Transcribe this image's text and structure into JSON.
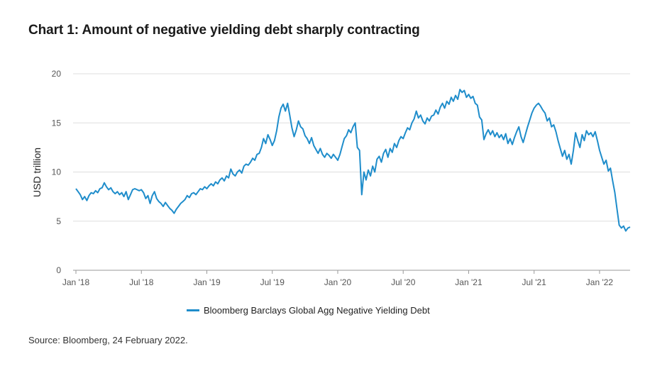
{
  "title": "Chart 1: Amount of negative yielding debt sharply contracting",
  "source": "Source: Bloomberg, 24 February 2022.",
  "colors": {
    "series": "#1f8dcb",
    "grid": "#dddddd",
    "axis": "#999999"
  },
  "chart_data": {
    "type": "line",
    "ylabel": "USD trillion",
    "ylim": [
      0,
      20
    ],
    "yticks": [
      0,
      5,
      10,
      15,
      20
    ],
    "xlim": [
      0,
      50.8
    ],
    "xticks": [
      {
        "x": 0,
        "label": "Jan '18"
      },
      {
        "x": 6,
        "label": "Jul '18"
      },
      {
        "x": 12,
        "label": "Jan '19"
      },
      {
        "x": 18,
        "label": "Jul '19"
      },
      {
        "x": 24,
        "label": "Jan '20"
      },
      {
        "x": 30,
        "label": "Jul '20"
      },
      {
        "x": 36,
        "label": "Jan '21"
      },
      {
        "x": 42,
        "label": "Jul '21"
      },
      {
        "x": 48,
        "label": "Jan '22"
      }
    ],
    "legend": {
      "placement": "bottom"
    },
    "grid": true,
    "series": [
      {
        "name": "Bloomberg Barclays Global Agg Negative Yielding Debt",
        "points": [
          [
            0.0,
            8.3
          ],
          [
            0.2,
            8.0
          ],
          [
            0.4,
            7.7
          ],
          [
            0.6,
            7.2
          ],
          [
            0.8,
            7.5
          ],
          [
            1.0,
            7.1
          ],
          [
            1.2,
            7.6
          ],
          [
            1.4,
            7.9
          ],
          [
            1.6,
            7.8
          ],
          [
            1.8,
            8.1
          ],
          [
            2.0,
            7.9
          ],
          [
            2.2,
            8.3
          ],
          [
            2.4,
            8.4
          ],
          [
            2.6,
            8.9
          ],
          [
            2.8,
            8.5
          ],
          [
            3.0,
            8.2
          ],
          [
            3.2,
            8.4
          ],
          [
            3.4,
            8.0
          ],
          [
            3.6,
            7.8
          ],
          [
            3.8,
            8.0
          ],
          [
            4.0,
            7.7
          ],
          [
            4.2,
            7.9
          ],
          [
            4.4,
            7.5
          ],
          [
            4.6,
            8.0
          ],
          [
            4.8,
            7.2
          ],
          [
            5.0,
            7.7
          ],
          [
            5.2,
            8.2
          ],
          [
            5.4,
            8.3
          ],
          [
            5.6,
            8.2
          ],
          [
            5.8,
            8.1
          ],
          [
            6.0,
            8.2
          ],
          [
            6.2,
            7.9
          ],
          [
            6.4,
            7.3
          ],
          [
            6.6,
            7.6
          ],
          [
            6.8,
            6.8
          ],
          [
            7.0,
            7.6
          ],
          [
            7.2,
            8.0
          ],
          [
            7.4,
            7.3
          ],
          [
            7.6,
            7.0
          ],
          [
            7.8,
            6.8
          ],
          [
            8.0,
            6.5
          ],
          [
            8.2,
            6.9
          ],
          [
            8.4,
            6.6
          ],
          [
            8.6,
            6.3
          ],
          [
            8.8,
            6.1
          ],
          [
            9.0,
            5.8
          ],
          [
            9.2,
            6.2
          ],
          [
            9.4,
            6.5
          ],
          [
            9.6,
            6.8
          ],
          [
            9.8,
            7.0
          ],
          [
            10.0,
            7.2
          ],
          [
            10.2,
            7.6
          ],
          [
            10.4,
            7.4
          ],
          [
            10.6,
            7.8
          ],
          [
            10.8,
            7.9
          ],
          [
            11.0,
            7.7
          ],
          [
            11.2,
            8.0
          ],
          [
            11.4,
            8.3
          ],
          [
            11.6,
            8.2
          ],
          [
            11.8,
            8.5
          ],
          [
            12.0,
            8.3
          ],
          [
            12.2,
            8.6
          ],
          [
            12.4,
            8.8
          ],
          [
            12.6,
            8.6
          ],
          [
            12.8,
            9.0
          ],
          [
            13.0,
            8.8
          ],
          [
            13.2,
            9.2
          ],
          [
            13.4,
            9.4
          ],
          [
            13.6,
            9.1
          ],
          [
            13.8,
            9.6
          ],
          [
            14.0,
            9.4
          ],
          [
            14.2,
            10.3
          ],
          [
            14.4,
            9.8
          ],
          [
            14.6,
            9.6
          ],
          [
            14.8,
            10.0
          ],
          [
            15.0,
            10.2
          ],
          [
            15.2,
            9.9
          ],
          [
            15.4,
            10.6
          ],
          [
            15.6,
            10.8
          ],
          [
            15.8,
            10.7
          ],
          [
            16.0,
            11.0
          ],
          [
            16.2,
            11.4
          ],
          [
            16.4,
            11.2
          ],
          [
            16.6,
            11.8
          ],
          [
            16.8,
            11.9
          ],
          [
            17.0,
            12.5
          ],
          [
            17.2,
            13.4
          ],
          [
            17.4,
            12.9
          ],
          [
            17.6,
            13.8
          ],
          [
            17.8,
            13.3
          ],
          [
            18.0,
            12.7
          ],
          [
            18.2,
            13.2
          ],
          [
            18.4,
            14.2
          ],
          [
            18.6,
            15.6
          ],
          [
            18.8,
            16.5
          ],
          [
            19.0,
            16.9
          ],
          [
            19.2,
            16.2
          ],
          [
            19.4,
            17.0
          ],
          [
            19.6,
            15.8
          ],
          [
            19.8,
            14.5
          ],
          [
            20.0,
            13.6
          ],
          [
            20.2,
            14.3
          ],
          [
            20.4,
            15.2
          ],
          [
            20.6,
            14.6
          ],
          [
            20.8,
            14.4
          ],
          [
            21.0,
            13.7
          ],
          [
            21.2,
            13.4
          ],
          [
            21.4,
            12.9
          ],
          [
            21.6,
            13.5
          ],
          [
            21.8,
            12.7
          ],
          [
            22.0,
            12.3
          ],
          [
            22.2,
            11.9
          ],
          [
            22.4,
            12.4
          ],
          [
            22.6,
            11.8
          ],
          [
            22.8,
            11.5
          ],
          [
            23.0,
            11.9
          ],
          [
            23.2,
            11.7
          ],
          [
            23.4,
            11.4
          ],
          [
            23.6,
            11.8
          ],
          [
            23.8,
            11.5
          ],
          [
            24.0,
            11.2
          ],
          [
            24.2,
            11.8
          ],
          [
            24.4,
            12.6
          ],
          [
            24.6,
            13.4
          ],
          [
            24.8,
            13.7
          ],
          [
            25.0,
            14.3
          ],
          [
            25.2,
            14.0
          ],
          [
            25.4,
            14.6
          ],
          [
            25.6,
            15.0
          ],
          [
            25.8,
            12.5
          ],
          [
            26.0,
            12.2
          ],
          [
            26.2,
            7.7
          ],
          [
            26.4,
            10.0
          ],
          [
            26.6,
            9.2
          ],
          [
            26.8,
            10.2
          ],
          [
            27.0,
            9.6
          ],
          [
            27.2,
            10.6
          ],
          [
            27.4,
            10.0
          ],
          [
            27.6,
            11.3
          ],
          [
            27.8,
            11.6
          ],
          [
            28.0,
            11.0
          ],
          [
            28.2,
            11.9
          ],
          [
            28.4,
            12.3
          ],
          [
            28.6,
            11.5
          ],
          [
            28.8,
            12.4
          ],
          [
            29.0,
            12.0
          ],
          [
            29.2,
            12.9
          ],
          [
            29.4,
            12.5
          ],
          [
            29.6,
            13.2
          ],
          [
            29.8,
            13.6
          ],
          [
            30.0,
            13.4
          ],
          [
            30.2,
            14.0
          ],
          [
            30.4,
            14.5
          ],
          [
            30.6,
            14.3
          ],
          [
            30.8,
            15.0
          ],
          [
            31.0,
            15.4
          ],
          [
            31.2,
            16.2
          ],
          [
            31.4,
            15.5
          ],
          [
            31.6,
            15.8
          ],
          [
            31.8,
            15.2
          ],
          [
            32.0,
            14.9
          ],
          [
            32.2,
            15.5
          ],
          [
            32.4,
            15.2
          ],
          [
            32.6,
            15.7
          ],
          [
            32.8,
            15.8
          ],
          [
            33.0,
            16.3
          ],
          [
            33.2,
            15.9
          ],
          [
            33.4,
            16.6
          ],
          [
            33.6,
            17.0
          ],
          [
            33.8,
            16.5
          ],
          [
            34.0,
            17.2
          ],
          [
            34.2,
            16.9
          ],
          [
            34.4,
            17.6
          ],
          [
            34.6,
            17.2
          ],
          [
            34.8,
            17.8
          ],
          [
            35.0,
            17.4
          ],
          [
            35.2,
            18.4
          ],
          [
            35.4,
            18.1
          ],
          [
            35.6,
            18.3
          ],
          [
            35.8,
            17.6
          ],
          [
            36.0,
            17.9
          ],
          [
            36.2,
            17.5
          ],
          [
            36.4,
            17.7
          ],
          [
            36.6,
            17.0
          ],
          [
            36.8,
            16.8
          ],
          [
            37.0,
            15.6
          ],
          [
            37.2,
            15.3
          ],
          [
            37.4,
            13.3
          ],
          [
            37.6,
            13.9
          ],
          [
            37.8,
            14.3
          ],
          [
            38.0,
            13.8
          ],
          [
            38.2,
            14.2
          ],
          [
            38.4,
            13.6
          ],
          [
            38.6,
            14.0
          ],
          [
            38.8,
            13.5
          ],
          [
            39.0,
            13.8
          ],
          [
            39.2,
            13.3
          ],
          [
            39.4,
            13.9
          ],
          [
            39.6,
            12.9
          ],
          [
            39.8,
            13.4
          ],
          [
            40.0,
            12.8
          ],
          [
            40.2,
            13.5
          ],
          [
            40.4,
            14.1
          ],
          [
            40.6,
            14.6
          ],
          [
            40.8,
            13.6
          ],
          [
            41.0,
            13.0
          ],
          [
            41.2,
            13.8
          ],
          [
            41.4,
            14.6
          ],
          [
            41.6,
            15.3
          ],
          [
            41.8,
            16.0
          ],
          [
            42.0,
            16.5
          ],
          [
            42.2,
            16.8
          ],
          [
            42.4,
            17.0
          ],
          [
            42.6,
            16.7
          ],
          [
            42.8,
            16.3
          ],
          [
            43.0,
            16.0
          ],
          [
            43.2,
            15.2
          ],
          [
            43.4,
            15.5
          ],
          [
            43.6,
            14.6
          ],
          [
            43.8,
            14.8
          ],
          [
            44.0,
            14.1
          ],
          [
            44.2,
            13.2
          ],
          [
            44.4,
            12.4
          ],
          [
            44.6,
            11.6
          ],
          [
            44.8,
            12.2
          ],
          [
            45.0,
            11.3
          ],
          [
            45.2,
            11.8
          ],
          [
            45.4,
            10.8
          ],
          [
            45.6,
            12.2
          ],
          [
            45.8,
            14.0
          ],
          [
            46.0,
            13.2
          ],
          [
            46.2,
            12.5
          ],
          [
            46.4,
            13.8
          ],
          [
            46.6,
            13.2
          ],
          [
            46.8,
            14.2
          ],
          [
            47.0,
            13.8
          ],
          [
            47.2,
            14.0
          ],
          [
            47.4,
            13.6
          ],
          [
            47.6,
            14.1
          ],
          [
            47.8,
            13.2
          ],
          [
            48.0,
            12.2
          ],
          [
            48.2,
            11.5
          ],
          [
            48.4,
            10.8
          ],
          [
            48.6,
            11.2
          ],
          [
            48.8,
            10.1
          ],
          [
            49.0,
            10.4
          ],
          [
            49.2,
            9.1
          ],
          [
            49.4,
            7.9
          ],
          [
            49.6,
            6.2
          ],
          [
            49.8,
            4.6
          ],
          [
            50.0,
            4.3
          ],
          [
            50.2,
            4.5
          ],
          [
            50.4,
            4.0
          ],
          [
            50.6,
            4.3
          ],
          [
            50.8,
            4.4
          ]
        ]
      }
    ]
  }
}
